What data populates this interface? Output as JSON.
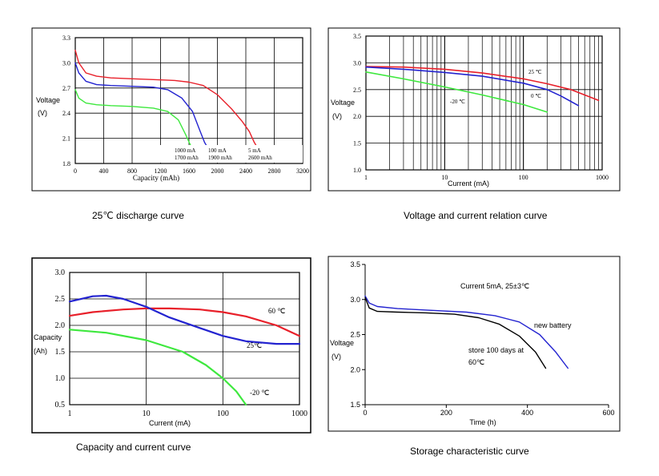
{
  "colors": {
    "red": "#e8202a",
    "blue": "#2323d0",
    "green": "#3ee83e",
    "black": "#000000",
    "frame": "#000000"
  },
  "captions": [
    "25℃ discharge curve",
    "Voltage and current relation curve",
    "Capacity and current curve",
    "Storage characteristic curve"
  ],
  "chart_data": [
    {
      "type": "line",
      "xlabel": "Capacity (mAh)",
      "ylabel_line1": "Voltage",
      "ylabel_line2": "(V)",
      "xlim": [
        0,
        3200
      ],
      "ylim": [
        1.8,
        3.3
      ],
      "xticks": [
        0,
        400,
        800,
        1200,
        1600,
        2000,
        2400,
        2800,
        3200
      ],
      "yticks": [
        1.8,
        2.1,
        2.4,
        2.7,
        3.0,
        3.3
      ],
      "legend": [
        {
          "line1": "1000 mA",
          "line2": "1700 mAh"
        },
        {
          "line1": "100 mA",
          "line2": "1900 mAh"
        },
        {
          "line1": "5 mA",
          "line2": "2600 mAh"
        }
      ],
      "series": [
        {
          "color": "red",
          "x": [
            0,
            50,
            150,
            300,
            500,
            800,
            1100,
            1400,
            1600,
            1800,
            2000,
            2200,
            2350,
            2450,
            2520,
            2570
          ],
          "y": [
            3.15,
            3.0,
            2.88,
            2.84,
            2.82,
            2.81,
            2.8,
            2.79,
            2.77,
            2.73,
            2.62,
            2.45,
            2.3,
            2.18,
            2.05,
            1.98
          ]
        },
        {
          "color": "blue",
          "x": [
            0,
            50,
            150,
            300,
            500,
            800,
            1100,
            1300,
            1500,
            1650,
            1750,
            1820,
            1870
          ],
          "y": [
            3.0,
            2.88,
            2.78,
            2.74,
            2.73,
            2.72,
            2.71,
            2.68,
            2.58,
            2.42,
            2.2,
            2.05,
            1.98
          ]
        },
        {
          "color": "green",
          "x": [
            0,
            50,
            150,
            300,
            500,
            800,
            1100,
            1300,
            1450,
            1550,
            1620,
            1660
          ],
          "y": [
            2.68,
            2.58,
            2.52,
            2.5,
            2.49,
            2.48,
            2.46,
            2.42,
            2.32,
            2.15,
            2.02,
            1.98
          ]
        }
      ]
    },
    {
      "type": "line",
      "xlabel": "Current (mA)",
      "ylabel_line1": "Voltage",
      "ylabel_line2": "(V)",
      "xscale": "log",
      "xlim": [
        1,
        1000
      ],
      "ylim": [
        1.0,
        3.5
      ],
      "xticks": [
        1,
        10,
        100,
        1000
      ],
      "yticks": [
        1.0,
        1.5,
        2.0,
        2.5,
        3.0,
        3.5
      ],
      "series": [
        {
          "name": "25 ℃",
          "color": "red",
          "x": [
            1,
            3,
            10,
            30,
            100,
            200,
            400,
            900
          ],
          "y": [
            2.93,
            2.92,
            2.88,
            2.81,
            2.7,
            2.61,
            2.5,
            2.3
          ]
        },
        {
          "name": "0 ℃",
          "color": "blue",
          "x": [
            1,
            3,
            10,
            30,
            100,
            200,
            300,
            500
          ],
          "y": [
            2.92,
            2.88,
            2.82,
            2.75,
            2.62,
            2.5,
            2.38,
            2.2
          ]
        },
        {
          "name": "-20 ℃",
          "color": "green",
          "x": [
            1,
            3,
            10,
            30,
            100,
            200
          ],
          "y": [
            2.83,
            2.7,
            2.55,
            2.4,
            2.22,
            2.08
          ]
        }
      ]
    },
    {
      "type": "line",
      "xlabel": "Current (mA)",
      "ylabel_line1": "Capacity",
      "ylabel_line2": "(Ah)",
      "xscale": "log",
      "xlim": [
        1,
        1000
      ],
      "ylim": [
        0.5,
        3.0
      ],
      "xticks": [
        1,
        10,
        100,
        1000
      ],
      "yticks": [
        0.5,
        1.0,
        1.5,
        2.0,
        2.5,
        3.0
      ],
      "series": [
        {
          "name": "60 ℃",
          "color": "red",
          "x": [
            1,
            2,
            5,
            10,
            20,
            50,
            100,
            200,
            500,
            1000
          ],
          "y": [
            2.18,
            2.25,
            2.3,
            2.32,
            2.32,
            2.3,
            2.25,
            2.17,
            2.0,
            1.8
          ]
        },
        {
          "name": "25℃",
          "color": "blue",
          "x": [
            1,
            2,
            3,
            5,
            10,
            20,
            50,
            100,
            200,
            500,
            1000
          ],
          "y": [
            2.45,
            2.55,
            2.56,
            2.5,
            2.35,
            2.15,
            1.95,
            1.8,
            1.7,
            1.65,
            1.65
          ]
        },
        {
          "name": "-20 ℃",
          "color": "green",
          "x": [
            1,
            3,
            10,
            30,
            60,
            100,
            150,
            200
          ],
          "y": [
            1.92,
            1.86,
            1.72,
            1.5,
            1.25,
            1.0,
            0.75,
            0.5
          ]
        }
      ]
    },
    {
      "type": "line",
      "title": "Current 5mA, 25±3℃",
      "xlabel": "Time (h)",
      "ylabel_line1": "Voltage",
      "ylabel_line2": "(V)",
      "xlim": [
        0,
        600
      ],
      "ylim": [
        1.5,
        3.5
      ],
      "xticks": [
        0,
        200,
        400,
        600
      ],
      "yticks": [
        1.5,
        2.0,
        2.5,
        3.0,
        3.5
      ],
      "series": [
        {
          "name": "new battery",
          "color": "blue",
          "x": [
            0,
            10,
            30,
            80,
            150,
            250,
            320,
            380,
            430,
            470,
            500
          ],
          "y": [
            3.05,
            2.95,
            2.9,
            2.87,
            2.85,
            2.82,
            2.77,
            2.68,
            2.5,
            2.25,
            2.02
          ]
        },
        {
          "name_line1": "store 100 days at",
          "name_line2": "60℃",
          "color": "black",
          "x": [
            0,
            10,
            30,
            80,
            150,
            220,
            280,
            330,
            380,
            420,
            445
          ],
          "y": [
            3.03,
            2.88,
            2.83,
            2.82,
            2.81,
            2.79,
            2.74,
            2.65,
            2.48,
            2.25,
            2.02
          ]
        }
      ]
    }
  ]
}
